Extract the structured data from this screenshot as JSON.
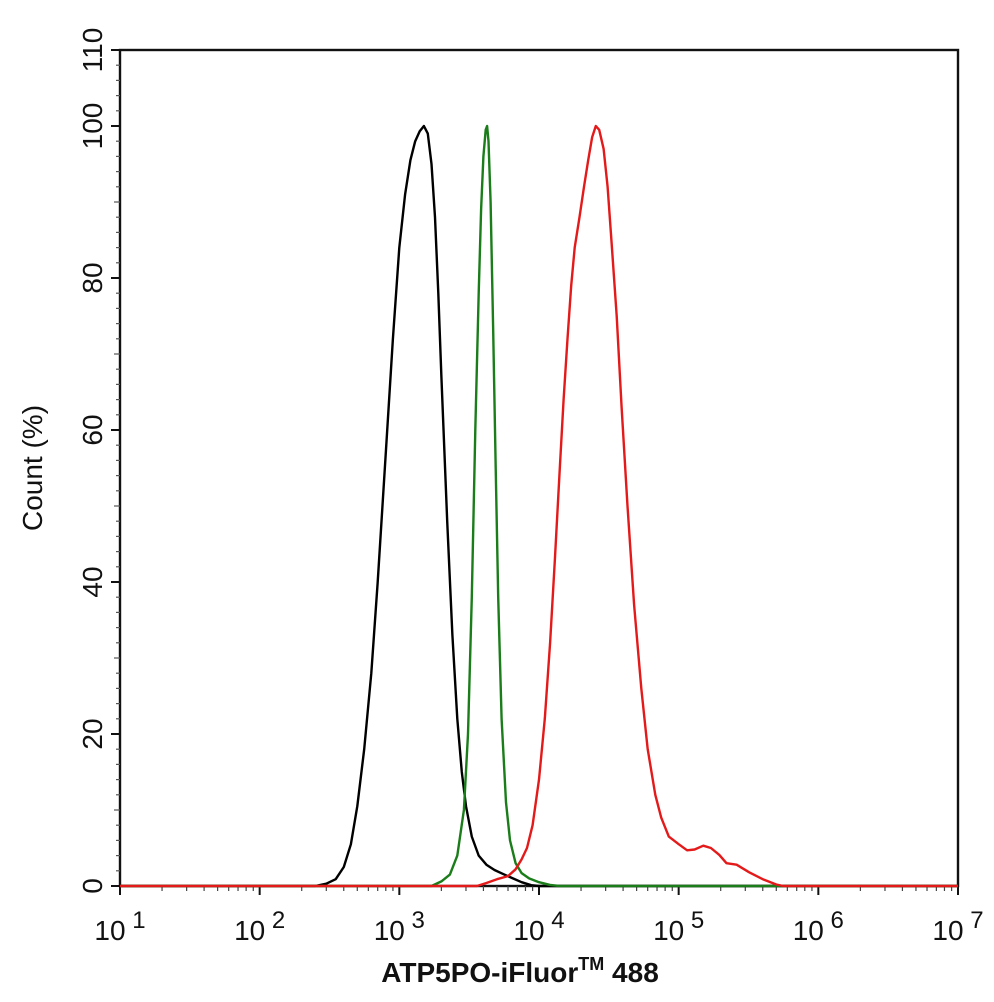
{
  "chart_data": {
    "type": "line",
    "title": "",
    "xlabel": "ATP5PO-iFluor",
    "xlabel_superscript": "TM",
    "xlabel_suffix": " 488",
    "ylabel": "Count  (%)",
    "x_scale": "log",
    "xlim": [
      10,
      10000000
    ],
    "ylim": [
      0,
      110
    ],
    "x_ticks": [
      {
        "value": 10,
        "base": "10",
        "exp": "1"
      },
      {
        "value": 100,
        "base": "10",
        "exp": "2"
      },
      {
        "value": 1000,
        "base": "10",
        "exp": "3"
      },
      {
        "value": 10000,
        "base": "10",
        "exp": "4"
      },
      {
        "value": 100000,
        "base": "10",
        "exp": "5"
      },
      {
        "value": 1000000,
        "base": "10",
        "exp": "6"
      },
      {
        "value": 10000000,
        "base": "10",
        "exp": "7"
      }
    ],
    "y_ticks": [
      0,
      20,
      40,
      60,
      80,
      100,
      110
    ],
    "grid": false,
    "legend": "none",
    "series": [
      {
        "color": "#000000",
        "points": [
          [
            250,
            0
          ],
          [
            300,
            0.3
          ],
          [
            350,
            0.9
          ],
          [
            400,
            2.5
          ],
          [
            450,
            5.5
          ],
          [
            500,
            10.5
          ],
          [
            560,
            18
          ],
          [
            630,
            28
          ],
          [
            700,
            40
          ],
          [
            800,
            57
          ],
          [
            900,
            72
          ],
          [
            1000,
            84
          ],
          [
            1100,
            91
          ],
          [
            1200,
            95.5
          ],
          [
            1300,
            98
          ],
          [
            1400,
            99.3
          ],
          [
            1500,
            100
          ],
          [
            1600,
            99
          ],
          [
            1700,
            95
          ],
          [
            1800,
            88
          ],
          [
            1900,
            78
          ],
          [
            2000,
            67
          ],
          [
            2200,
            48
          ],
          [
            2400,
            33
          ],
          [
            2600,
            22
          ],
          [
            2800,
            15
          ],
          [
            3000,
            10.5
          ],
          [
            3300,
            6.5
          ],
          [
            3700,
            4
          ],
          [
            4200,
            2.8
          ],
          [
            4800,
            2.1
          ],
          [
            5500,
            1.6
          ],
          [
            6500,
            1.0
          ],
          [
            7500,
            0.5
          ],
          [
            8800,
            0.1
          ],
          [
            10000,
            0
          ]
        ]
      },
      {
        "color": "#1a7d1a",
        "points": [
          [
            1700,
            0
          ],
          [
            2000,
            0.6
          ],
          [
            2300,
            1.5
          ],
          [
            2600,
            4
          ],
          [
            2900,
            10
          ],
          [
            3100,
            20
          ],
          [
            3300,
            38
          ],
          [
            3500,
            60
          ],
          [
            3700,
            78
          ],
          [
            3850,
            89
          ],
          [
            4000,
            96
          ],
          [
            4150,
            99.5
          ],
          [
            4250,
            100
          ],
          [
            4350,
            98
          ],
          [
            4500,
            90
          ],
          [
            4700,
            73
          ],
          [
            4900,
            55
          ],
          [
            5100,
            38
          ],
          [
            5400,
            22
          ],
          [
            5800,
            11
          ],
          [
            6200,
            6
          ],
          [
            6800,
            3
          ],
          [
            7500,
            1.7
          ],
          [
            8500,
            1
          ],
          [
            10000,
            0.5
          ],
          [
            12000,
            0.15
          ],
          [
            14000,
            0
          ]
        ]
      },
      {
        "color": "#e41a1a",
        "points": [
          [
            3600,
            0
          ],
          [
            4200,
            0.4
          ],
          [
            5000,
            0.9
          ],
          [
            6000,
            1.3
          ],
          [
            6800,
            2.2
          ],
          [
            7500,
            3.5
          ],
          [
            8200,
            5
          ],
          [
            9000,
            8
          ],
          [
            10000,
            14
          ],
          [
            11000,
            22
          ],
          [
            12000,
            32
          ],
          [
            13000,
            43
          ],
          [
            14000,
            54
          ],
          [
            15000,
            64
          ],
          [
            16000,
            72
          ],
          [
            17000,
            79
          ],
          [
            18000,
            84
          ],
          [
            19500,
            88
          ],
          [
            21000,
            92
          ],
          [
            22500,
            95.5
          ],
          [
            24000,
            98.5
          ],
          [
            25500,
            100
          ],
          [
            27000,
            99.5
          ],
          [
            29000,
            97
          ],
          [
            31000,
            92
          ],
          [
            33000,
            85
          ],
          [
            36000,
            75
          ],
          [
            39000,
            63
          ],
          [
            43000,
            50
          ],
          [
            48000,
            37
          ],
          [
            54000,
            26
          ],
          [
            60000,
            18
          ],
          [
            68000,
            12
          ],
          [
            75000,
            9
          ],
          [
            85000,
            6.5
          ],
          [
            100000,
            5.5
          ],
          [
            115000,
            4.7
          ],
          [
            130000,
            4.8
          ],
          [
            150000,
            5.3
          ],
          [
            170000,
            5
          ],
          [
            195000,
            4.1
          ],
          [
            220000,
            3
          ],
          [
            260000,
            2.8
          ],
          [
            320000,
            1.8
          ],
          [
            400000,
            0.9
          ],
          [
            500000,
            0.2
          ],
          [
            560000,
            0
          ]
        ]
      }
    ]
  }
}
